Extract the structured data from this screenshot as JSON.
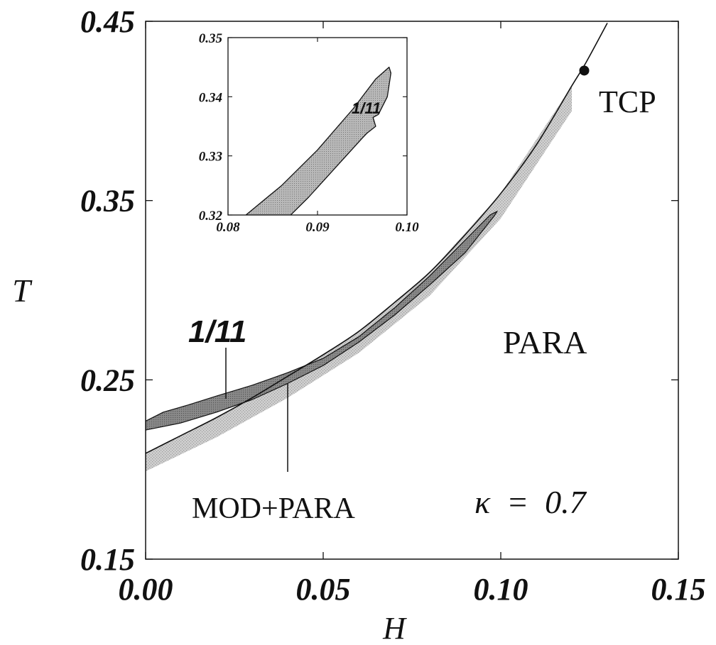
{
  "chart_data": [
    {
      "type": "line",
      "title": "",
      "xlabel": "H",
      "ylabel": "T",
      "xlim": [
        0.0,
        0.15
      ],
      "ylim": [
        0.15,
        0.45
      ],
      "x_ticks": [
        "0.00",
        "0.05",
        "0.10",
        "0.15"
      ],
      "y_ticks": [
        "0.15",
        "0.25",
        "0.35",
        "0.45"
      ],
      "grid": false,
      "series": [
        {
          "kind": "boundary-line",
          "x": [
            0.0,
            0.01,
            0.02,
            0.03,
            0.04,
            0.05,
            0.06,
            0.07,
            0.08,
            0.09,
            0.1,
            0.11,
            0.12,
            0.124,
            0.13
          ],
          "y": [
            0.209,
            0.219,
            0.229,
            0.24,
            0.252,
            0.264,
            0.277,
            0.293,
            0.31,
            0.331,
            0.354,
            0.381,
            0.414,
            0.427,
            0.449
          ]
        },
        {
          "kind": "shaded-band",
          "x": [
            0.0,
            0.02,
            0.04,
            0.06,
            0.08,
            0.1,
            0.12
          ],
          "y_upper": [
            0.209,
            0.229,
            0.252,
            0.277,
            0.31,
            0.354,
            0.414
          ],
          "y_lower": [
            0.199,
            0.218,
            0.24,
            0.265,
            0.297,
            0.34,
            0.4
          ]
        },
        {
          "kind": "phase-region",
          "label": "1/11",
          "x": [
            0.0,
            0.005,
            0.012,
            0.02,
            0.03,
            0.04,
            0.05,
            0.06,
            0.07,
            0.08,
            0.09,
            0.097,
            0.099,
            0.098,
            0.096,
            0.09,
            0.08,
            0.07,
            0.06,
            0.05,
            0.04,
            0.03,
            0.02,
            0.01,
            0.0
          ],
          "y": [
            0.227,
            0.232,
            0.236,
            0.241,
            0.247,
            0.254,
            0.262,
            0.274,
            0.29,
            0.308,
            0.328,
            0.342,
            0.344,
            0.341,
            0.336,
            0.321,
            0.303,
            0.286,
            0.271,
            0.258,
            0.248,
            0.239,
            0.232,
            0.226,
            0.222
          ]
        }
      ],
      "points": [
        {
          "name": "TCP",
          "x": 0.1235,
          "y": 0.4225
        }
      ],
      "annotations": {
        "region_1_11": "1/11",
        "para": "PARA",
        "mod_para": "MOD+PARA",
        "kappa": "κ  =  0.7",
        "tcp": "TCP"
      }
    },
    {
      "type": "line",
      "role": "inset",
      "xlim": [
        0.08,
        0.1
      ],
      "ylim": [
        0.32,
        0.35
      ],
      "x_ticks": [
        "0.08",
        "0.09",
        "0.10"
      ],
      "y_ticks": [
        "0.32",
        "0.33",
        "0.34",
        "0.35"
      ],
      "series": [
        {
          "kind": "phase-region",
          "label": "1/11",
          "x": [
            0.082,
            0.086,
            0.09,
            0.094,
            0.0965,
            0.098,
            0.0982,
            0.0978,
            0.0968,
            0.0962,
            0.0965,
            0.0955,
            0.095,
            0.092,
            0.089,
            0.087
          ],
          "y": [
            0.32,
            0.325,
            0.331,
            0.338,
            0.343,
            0.345,
            0.344,
            0.34,
            0.337,
            0.3365,
            0.335,
            0.3338,
            0.333,
            0.328,
            0.323,
            0.32
          ]
        }
      ],
      "annotations": {
        "label": "1/11"
      }
    }
  ]
}
